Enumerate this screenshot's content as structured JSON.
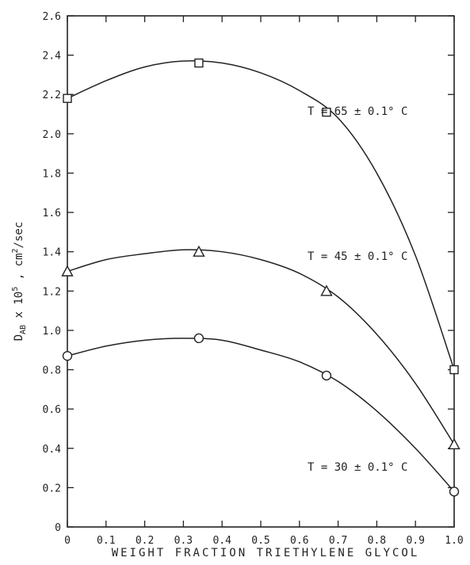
{
  "chart_data": {
    "type": "line",
    "xlabel": "WEIGHT FRACTION TRIETHYLENE GLYCOL",
    "ylabel": "D_AB x 10^5 , cm^2/sec",
    "xlim": [
      0,
      1.0
    ],
    "ylim": [
      0,
      2.6
    ],
    "xticks": [
      0,
      0.1,
      0.2,
      0.3,
      0.4,
      0.5,
      0.6,
      0.7,
      0.8,
      0.9,
      1.0
    ],
    "xtick_labels": [
      "0",
      "0.1",
      "0.2",
      "0.3",
      "0.4",
      "0.5",
      "0.6",
      "0.7",
      "0.8",
      "0.9",
      "1.0"
    ],
    "yticks": [
      0,
      0.2,
      0.4,
      0.6,
      0.8,
      1.0,
      1.2,
      1.4,
      1.6,
      1.8,
      2.0,
      2.2,
      2.4,
      2.6
    ],
    "ytick_labels": [
      "0",
      "0.2",
      "0.4",
      "0.6",
      "0.8",
      "1.0",
      "1.2",
      "1.4",
      "1.6",
      "1.8",
      "2.0",
      "2.2",
      "2.4",
      "2.6"
    ],
    "grid": false,
    "series": [
      {
        "name": "T = 65 ± 0.1° C",
        "marker": "square",
        "x": [
          0,
          0.34,
          0.67,
          1.0
        ],
        "y": [
          2.18,
          2.36,
          2.11,
          0.8
        ],
        "curve_y": [
          2.18,
          2.27,
          2.34,
          2.37,
          2.36,
          2.31,
          2.22,
          2.08,
          1.8,
          1.38,
          0.8
        ]
      },
      {
        "name": "T = 45 ± 0.1° C",
        "marker": "triangle",
        "x": [
          0,
          0.34,
          0.67,
          1.0
        ],
        "y": [
          1.3,
          1.4,
          1.2,
          0.42
        ],
        "curve_y": [
          1.3,
          1.36,
          1.39,
          1.41,
          1.4,
          1.36,
          1.29,
          1.17,
          0.98,
          0.73,
          0.42
        ]
      },
      {
        "name": "T = 30 ± 0.1° C",
        "marker": "circle",
        "x": [
          0,
          0.34,
          0.67,
          1.0
        ],
        "y": [
          0.87,
          0.96,
          0.77,
          0.18
        ],
        "curve_y": [
          0.87,
          0.92,
          0.95,
          0.96,
          0.95,
          0.9,
          0.84,
          0.74,
          0.59,
          0.4,
          0.18
        ]
      }
    ]
  }
}
